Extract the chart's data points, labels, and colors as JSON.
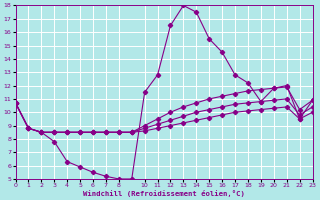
{
  "xlabel": "Windchill (Refroidissement éolien,°C)",
  "bg_color": "#b2e8e8",
  "line_color": "#880088",
  "grid_color": "#ffffff",
  "hours": [
    0,
    1,
    2,
    3,
    4,
    5,
    6,
    7,
    8,
    9,
    10,
    11,
    12,
    13,
    14,
    15,
    16,
    17,
    18,
    19,
    20,
    21,
    22,
    23
  ],
  "temp": [
    10.7,
    8.8,
    8.5,
    7.8,
    6.3,
    5.9,
    5.5,
    5.2,
    5.0,
    5.0,
    11.5,
    12.8,
    16.5,
    18.0,
    17.5,
    15.5,
    14.5,
    12.8,
    12.2,
    10.8,
    11.8,
    12.0,
    9.5,
    10.9
  ],
  "wc1": [
    10.7,
    8.8,
    8.5,
    8.5,
    8.5,
    8.5,
    8.5,
    8.5,
    8.5,
    8.5,
    9.0,
    9.5,
    10.0,
    10.4,
    10.7,
    11.0,
    11.2,
    11.4,
    11.6,
    11.7,
    11.8,
    11.9,
    10.2,
    10.9
  ],
  "wc2": [
    10.7,
    8.8,
    8.5,
    8.5,
    8.5,
    8.5,
    8.5,
    8.5,
    8.5,
    8.5,
    8.8,
    9.1,
    9.4,
    9.7,
    10.0,
    10.2,
    10.4,
    10.6,
    10.7,
    10.8,
    10.9,
    11.0,
    9.8,
    10.4
  ],
  "wc3": [
    10.7,
    8.8,
    8.5,
    8.5,
    8.5,
    8.5,
    8.5,
    8.5,
    8.5,
    8.5,
    8.6,
    8.8,
    9.0,
    9.2,
    9.4,
    9.6,
    9.8,
    10.0,
    10.1,
    10.2,
    10.3,
    10.4,
    9.5,
    10.0
  ],
  "ylim": [
    5,
    18
  ],
  "xlim": [
    0,
    23
  ],
  "xticks": [
    0,
    1,
    2,
    3,
    4,
    5,
    6,
    7,
    8,
    10,
    11,
    12,
    13,
    14,
    15,
    16,
    17,
    18,
    19,
    20,
    21,
    22,
    23
  ],
  "xticklabels": [
    "0",
    "1",
    "2",
    "3",
    "4",
    "5",
    "6",
    "7",
    "8",
    "10",
    "11",
    "12",
    "13",
    "14",
    "15",
    "16",
    "17",
    "18",
    "19",
    "20",
    "21",
    "22",
    "23"
  ],
  "yticks": [
    5,
    6,
    7,
    8,
    9,
    10,
    11,
    12,
    13,
    14,
    15,
    16,
    17,
    18
  ]
}
